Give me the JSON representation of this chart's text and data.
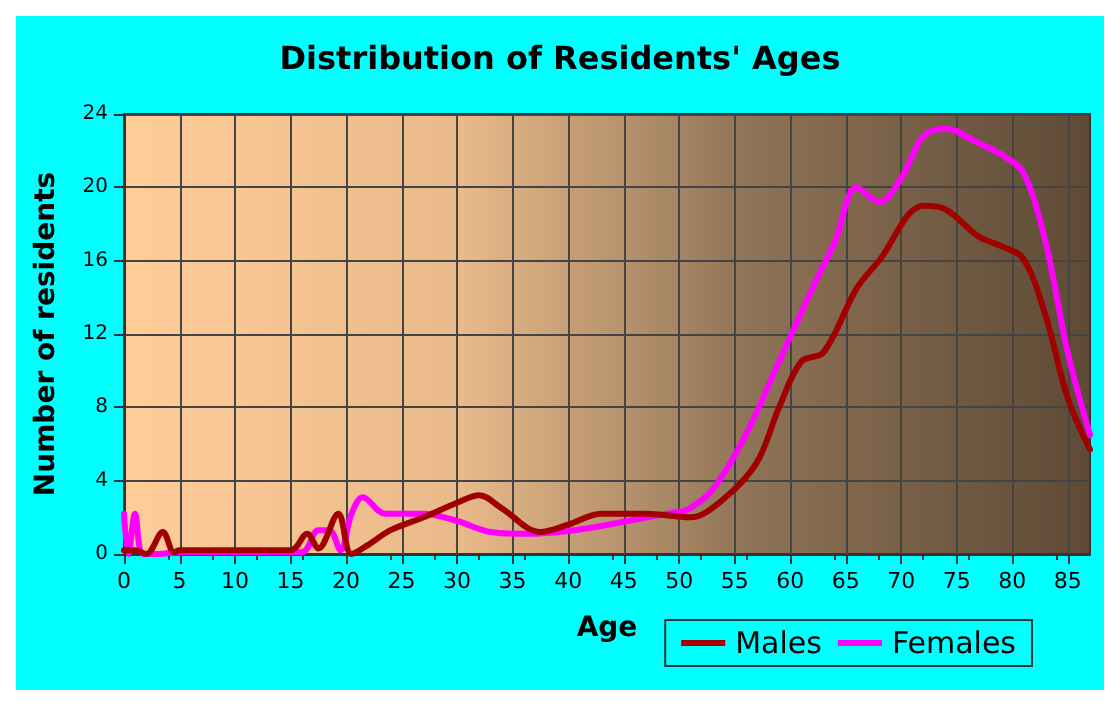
{
  "chart_data": {
    "type": "line",
    "title": "Distribution of Residents' Ages",
    "xlabel": "Age",
    "ylabel": "Number of residents",
    "xlim": [
      0,
      87
    ],
    "xticks": [
      0,
      5,
      10,
      15,
      20,
      25,
      30,
      35,
      40,
      45,
      50,
      55,
      60,
      65,
      70,
      75,
      80,
      85
    ],
    "ylim": [
      0,
      24
    ],
    "yticks": [
      0,
      4,
      8,
      12,
      16,
      20,
      24
    ],
    "grid": true,
    "legend": "bottom right",
    "marker": "none",
    "line_style": "solid",
    "series": [
      {
        "name": "Males",
        "color": "#a00000",
        "x": [
          0,
          1,
          2,
          3.5,
          4.5,
          5,
          15,
          16.5,
          17.5,
          19.3,
          20.5,
          22,
          24,
          27,
          30,
          32,
          34,
          37.5,
          40,
          43,
          47,
          51,
          54,
          57,
          59,
          61,
          63,
          66,
          68,
          72,
          74,
          77,
          79,
          81,
          83,
          85,
          87
        ],
        "values": [
          0.2,
          0.2,
          0,
          1.2,
          0.1,
          0.2,
          0.2,
          1.1,
          0.3,
          2.2,
          0,
          0.5,
          1.3,
          2,
          2.8,
          3.2,
          2.5,
          1.2,
          1.6,
          2.2,
          2.2,
          2,
          3,
          5,
          8,
          10.5,
          11,
          14.5,
          16,
          19,
          18.8,
          17.3,
          16.8,
          16.1,
          13,
          8.5,
          5.7
        ]
      },
      {
        "name": "Females",
        "color": "#ff00ff",
        "x": [
          0,
          0.4,
          1,
          1.7,
          3,
          5,
          16,
          17.5,
          18.5,
          19.5,
          20.5,
          21.5,
          23.5,
          27,
          30,
          33,
          36,
          50,
          51,
          53,
          56,
          59,
          62,
          64,
          66,
          68,
          70,
          72,
          74,
          77,
          79,
          81,
          83,
          85,
          87
        ],
        "values": [
          2.2,
          0,
          2.2,
          0,
          0,
          0.1,
          0.1,
          1.3,
          1.3,
          0.2,
          2.2,
          3.1,
          2.2,
          2.2,
          1.8,
          1.2,
          1.1,
          2.3,
          2.5,
          3.5,
          6.5,
          10.5,
          14.5,
          17,
          20,
          19.2,
          20.5,
          22.8,
          23.2,
          22.4,
          21.8,
          20.8,
          17,
          11,
          6.5
        ]
      }
    ]
  }
}
